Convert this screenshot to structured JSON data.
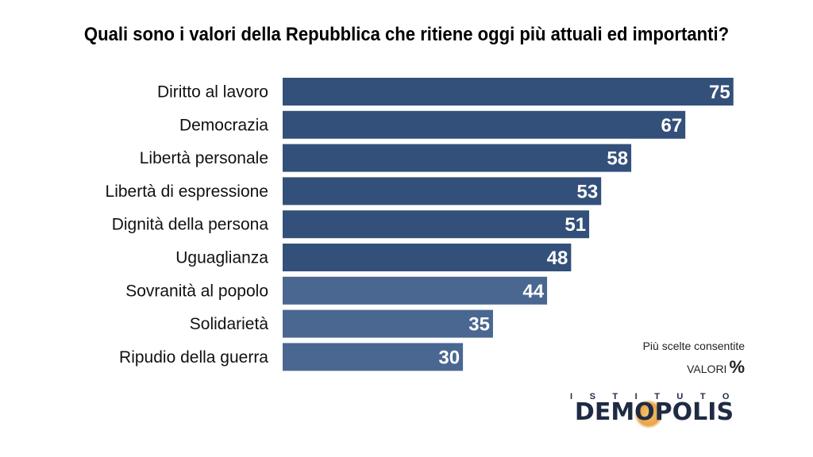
{
  "chart_data": {
    "type": "bar",
    "orientation": "horizontal",
    "title": "Quali sono i valori della Repubblica che ritiene oggi più attuali ed importanti?",
    "categories": [
      "Diritto al lavoro",
      "Democrazia",
      "Libertà personale",
      "Libertà di espressione",
      "Dignità della persona",
      "Uguaglianza",
      "Sovranità al popolo",
      "Solidarietà",
      "Ripudio della guerra"
    ],
    "values": [
      75,
      67,
      58,
      53,
      51,
      48,
      44,
      35,
      30
    ],
    "xlim": [
      0,
      100
    ],
    "grid": false,
    "colors": {
      "dark": "#33507a",
      "light": "#4a6791"
    },
    "dark_count": 6
  },
  "note": {
    "line1": "Più scelte consentite",
    "valori": "VALORI",
    "pct": "%"
  },
  "logo": {
    "top": "ISTITUTO",
    "main": "DEMOPOLIS"
  }
}
